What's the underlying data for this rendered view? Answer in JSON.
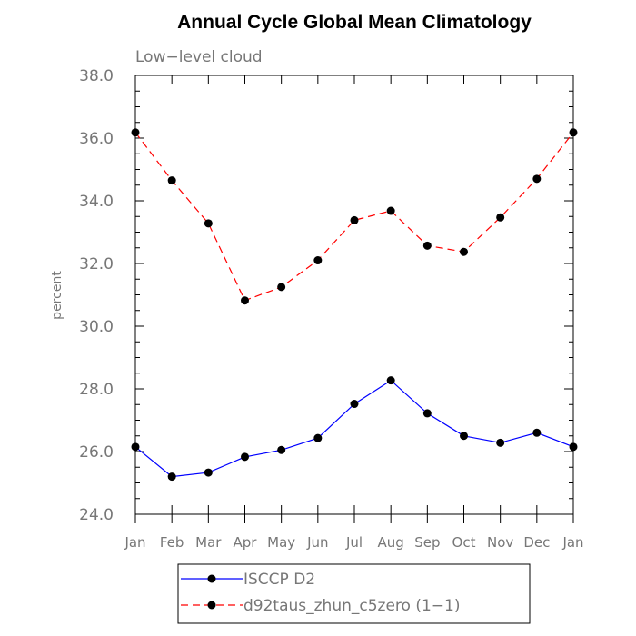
{
  "chart_data": {
    "type": "line",
    "title": "Annual Cycle Global Mean Climatology",
    "subtitle": "Low−level cloud",
    "xlabel": "",
    "ylabel": "percent",
    "categories": [
      "Jan",
      "Feb",
      "Mar",
      "Apr",
      "May",
      "Jun",
      "Jul",
      "Aug",
      "Sep",
      "Oct",
      "Nov",
      "Dec",
      "Jan"
    ],
    "ylim": [
      24.0,
      38.0
    ],
    "yticks": [
      "24.0",
      "26.0",
      "28.0",
      "30.0",
      "32.0",
      "34.0",
      "36.0",
      "38.0"
    ],
    "grid": false,
    "legend_placement": "bottom-center",
    "series": [
      {
        "name": "ISCCP D2",
        "color": "#0000ff",
        "line_style": "solid",
        "marker": "filled-circle",
        "values": [
          26.15,
          25.2,
          25.33,
          25.83,
          26.05,
          26.43,
          27.52,
          28.27,
          27.22,
          26.5,
          26.28,
          26.6,
          26.15
        ]
      },
      {
        "name": "d92taus_zhun_c5zero (1−1)",
        "color": "#ff0000",
        "line_style": "dashed",
        "marker": "filled-circle",
        "values": [
          36.18,
          34.65,
          33.28,
          30.82,
          31.25,
          32.1,
          33.38,
          33.68,
          32.57,
          32.37,
          33.47,
          34.7,
          36.18
        ]
      }
    ]
  }
}
